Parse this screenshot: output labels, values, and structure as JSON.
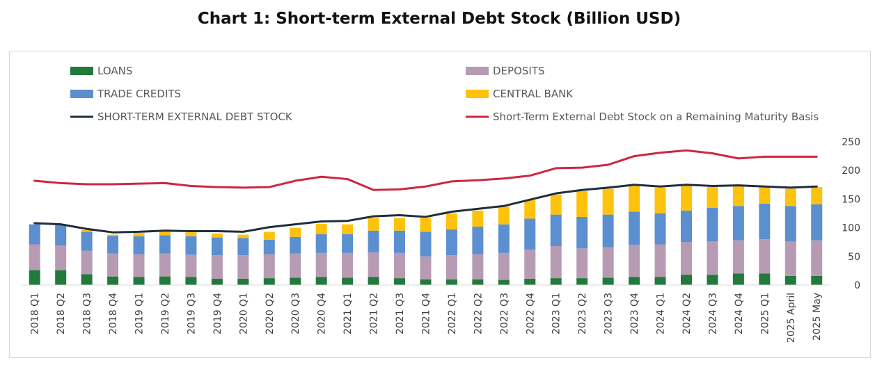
{
  "title": "Chart 1: Short-term External Debt Stock (Billion USD)",
  "colors": {
    "loans": "#217a3c",
    "deposits": "#b79bb3",
    "trade_credits": "#5b8fd0",
    "central_bank": "#fdc20c",
    "st_debt_line": "#1f2d3d",
    "remaining_maturity_line": "#d0263f"
  },
  "chart_data": {
    "type": "bar",
    "stacked": true,
    "title": "Chart 1: Short-term External Debt Stock (Billion USD)",
    "ylim": [
      0,
      250
    ],
    "yticks": [
      0,
      50,
      100,
      150,
      200,
      250
    ],
    "y_axis_side": "right",
    "legend_position": "top",
    "grid": false,
    "categories": [
      "2018 Q1",
      "2018 Q2",
      "2018 Q3",
      "2018 Q4",
      "2019 Q1",
      "2019 Q2",
      "2019 Q3",
      "2019 Q4",
      "2020 Q1",
      "2020 Q2",
      "2020 Q3",
      "2020 Q4",
      "2021 Q1",
      "2021 Q2",
      "2021 Q3",
      "2021 Q4",
      "2022 Q1",
      "2022 Q2",
      "2022 Q3",
      "2022 Q4",
      "2023 Q1",
      "2023 Q2",
      "2023 Q3",
      "2023 Q4",
      "2024 Q1",
      "2024 Q2",
      "2024 Q3",
      "2024 Q4",
      "2025 Q1",
      "2025 April",
      "2025 May"
    ],
    "series": [
      {
        "name": "LOANS",
        "kind": "bar",
        "color_key": "loans",
        "values": [
          26,
          26,
          19,
          15,
          14,
          15,
          14,
          11,
          11,
          12,
          13,
          14,
          13,
          14,
          12,
          10,
          10,
          10,
          9,
          11,
          12,
          12,
          13,
          14,
          14,
          18,
          18,
          20,
          20,
          16,
          16
        ]
      },
      {
        "name": "DEPOSITS",
        "kind": "bar",
        "color_key": "deposits",
        "values": [
          45,
          43,
          41,
          40,
          40,
          40,
          39,
          41,
          41,
          42,
          42,
          42,
          43,
          43,
          44,
          40,
          42,
          44,
          47,
          51,
          56,
          52,
          53,
          56,
          57,
          57,
          58,
          58,
          60,
          60,
          62
        ]
      },
      {
        "name": "TRADE CREDITS",
        "kind": "bar",
        "color_key": "trade_credits",
        "values": [
          35,
          36,
          33,
          31,
          31,
          32,
          32,
          31,
          30,
          25,
          29,
          33,
          33,
          38,
          39,
          43,
          45,
          48,
          50,
          54,
          55,
          55,
          57,
          58,
          54,
          55,
          59,
          60,
          62,
          62,
          63
        ]
      },
      {
        "name": "CENTRAL BANK",
        "kind": "bar",
        "color_key": "central_bank",
        "values": [
          0,
          0,
          3,
          2,
          6,
          6,
          7,
          7,
          6,
          14,
          16,
          18,
          17,
          22,
          22,
          24,
          28,
          28,
          31,
          32,
          35,
          45,
          45,
          47,
          45,
          44,
          36,
          37,
          30,
          30,
          30
        ]
      },
      {
        "name": "SHORT-TERM EXTERNAL DEBT STOCK",
        "kind": "line",
        "color_key": "st_debt_line",
        "values": [
          108,
          106,
          98,
          92,
          93,
          95,
          94,
          94,
          93,
          101,
          106,
          111,
          112,
          120,
          122,
          119,
          128,
          133,
          138,
          149,
          160,
          166,
          170,
          175,
          172,
          175,
          173,
          174,
          172,
          170,
          172
        ]
      },
      {
        "name": "Short-Term External Debt Stock on a Remaining Maturity Basis",
        "kind": "line",
        "color_key": "remaining_maturity_line",
        "values": [
          182,
          178,
          176,
          176,
          177,
          178,
          173,
          171,
          170,
          171,
          182,
          189,
          185,
          166,
          167,
          172,
          181,
          183,
          186,
          191,
          204,
          205,
          210,
          225,
          231,
          235,
          230,
          221,
          224,
          224,
          224
        ]
      }
    ]
  }
}
